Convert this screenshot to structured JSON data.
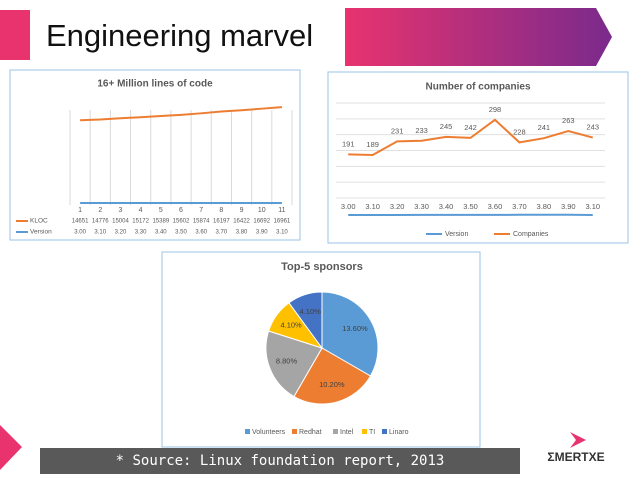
{
  "title": "Engineering marvel",
  "source": "* Source: Linux foundation report, 2013",
  "logo": "ΣMERTXE",
  "chart_data": [
    {
      "type": "line",
      "title": "16+ Million lines of code",
      "data_table": true,
      "categories": [
        1,
        2,
        3,
        4,
        5,
        6,
        7,
        8,
        9,
        10,
        11
      ],
      "series": [
        {
          "name": "KLOC",
          "color": "#ed7d31",
          "values": [
            14651,
            14776,
            15004,
            15172,
            15389,
            15602,
            15874,
            16197,
            16422,
            16692,
            16961
          ]
        },
        {
          "name": "Version",
          "color": "#5b9bd5",
          "values": [
            3.0,
            3.1,
            3.2,
            3.3,
            3.4,
            3.5,
            3.6,
            3.7,
            3.8,
            3.9,
            3.1
          ],
          "value_labels": [
            "3.00",
            "3.10",
            "3.20",
            "3.30",
            "3.40",
            "3.50",
            "3.60",
            "3.70",
            "3.80",
            "3.90",
            "3.10"
          ]
        }
      ],
      "ylim": [
        0,
        20000
      ]
    },
    {
      "type": "line",
      "title": "Number of companies",
      "grid": true,
      "categories": [
        "3.00",
        "3.10",
        "3.20",
        "3.30",
        "3.40",
        "3.50",
        "3.60",
        "3.70",
        "3.80",
        "3.90",
        "3.10"
      ],
      "series": [
        {
          "name": "Version",
          "color": "#5b9bd5",
          "values": [
            3.0,
            3.1,
            3.2,
            3.3,
            3.4,
            3.5,
            3.6,
            3.7,
            3.8,
            3.9,
            3.1
          ]
        },
        {
          "name": "Companies",
          "color": "#ed7d31",
          "show_labels": true,
          "values": [
            191,
            189,
            231,
            233,
            245,
            242,
            298,
            228,
            241,
            263,
            243
          ]
        }
      ],
      "ylim": [
        0,
        350
      ]
    },
    {
      "type": "pie",
      "title": "Top-5 sponsors",
      "categories": [
        "Volunteers",
        "Redhat",
        "Intel",
        "TI",
        "Linaro"
      ],
      "values": [
        13.6,
        10.2,
        8.8,
        4.1,
        4.1
      ],
      "value_labels": [
        "13.60%",
        "10.20%",
        "8.80%",
        "4.10%",
        "4.10%"
      ],
      "colors": [
        "#5b9bd5",
        "#ed7d31",
        "#a5a5a5",
        "#ffc000",
        "#4472c4"
      ]
    }
  ]
}
